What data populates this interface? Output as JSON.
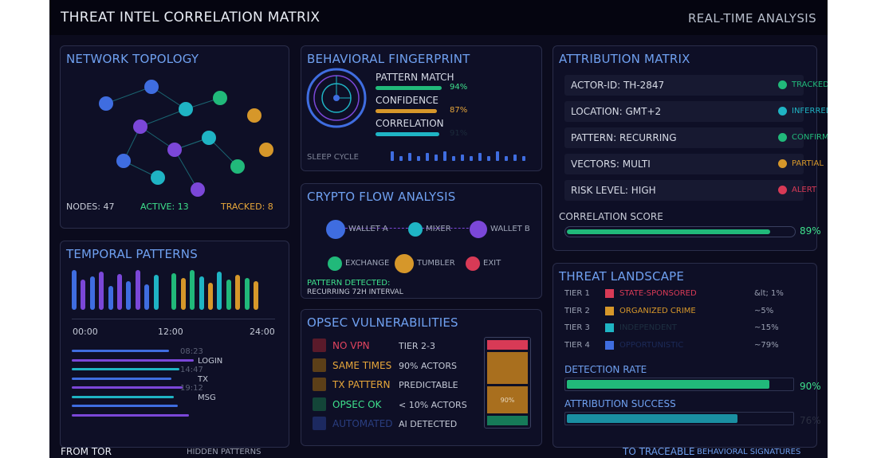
{
  "header": {
    "title": "THREAT INTEL CORRELATION MATRIX",
    "right": "REAL-TIME ANALYSIS"
  },
  "colors": {
    "blue": "#3f6de0",
    "purple": "#7b47d8",
    "cyan": "#1fb4c4",
    "green": "#21b97a",
    "orange": "#d6972a",
    "red": "#d83a56"
  },
  "topology": {
    "title": "NETWORK TOPOLOGY",
    "nodes_label": "NODES: 47",
    "active_label": "ACTIVE: 13",
    "tracked_label": "TRACKED: 8",
    "node_colors": [
      "blue",
      "blue",
      "cyan",
      "green",
      "orange",
      "purple",
      "purple",
      "cyan",
      "blue",
      "cyan",
      "green",
      "orange",
      "purple"
    ]
  },
  "fingerprint": {
    "title": "BEHAVIORAL FINGERPRINT",
    "metrics": [
      {
        "label": "PATTERN MATCH",
        "value": "94%",
        "fill": 0.94,
        "color": "green"
      },
      {
        "label": "CONFIDENCE",
        "value": "87%",
        "fill": 0.87,
        "color": "orange"
      },
      {
        "label": "CORRELATION",
        "value": "91%",
        "fill": 0.91,
        "color": "cyan"
      }
    ],
    "sleep_label": "SLEEP CYCLE"
  },
  "attribution": {
    "title": "ATTRIBUTION MATRIX",
    "rows": [
      {
        "text": "ACTOR-ID: TH-2847",
        "status": "TRACKED",
        "color": "green"
      },
      {
        "text": "LOCATION: GMT+2",
        "status": "INFERRED",
        "color": "cyan"
      },
      {
        "text": "PATTERN: RECURRING",
        "status": "CONFIRMED",
        "color": "green"
      },
      {
        "text": "VECTORS: MULTI",
        "status": "PARTIAL",
        "color": "orange"
      },
      {
        "text": "RISK LEVEL: HIGH",
        "status": "ALERT",
        "color": "red"
      }
    ],
    "score_label": "CORRELATION SCORE",
    "score_value": "89%",
    "score_fill": 0.89
  },
  "temporal": {
    "title": "TEMPORAL PATTERNS",
    "times": [
      "00:00",
      "12:00",
      "24:00"
    ],
    "lines": [
      {
        "time": "08:23",
        "label": "LOGIN"
      },
      {
        "time": "14:47",
        "label": "TX"
      },
      {
        "time": "19:12",
        "label": "MSG"
      }
    ]
  },
  "crypto": {
    "title": "CRYPTO FLOW ANALYSIS",
    "nodes": [
      {
        "label": "WALLET A",
        "color": "blue"
      },
      {
        "label": "MIXER",
        "color": "cyan"
      },
      {
        "label": "WALLET B",
        "color": "purple"
      },
      {
        "label": "EXCHANGE",
        "color": "green"
      },
      {
        "label": "TUMBLER",
        "color": "orange"
      },
      {
        "label": "EXIT",
        "color": "red"
      }
    ],
    "pattern": "PATTERN DETECTED:",
    "interval": "RECURRING 72H INTERVAL"
  },
  "threat": {
    "title": "THREAT LANDSCAPE",
    "tiers": [
      {
        "tier": "TIER 1",
        "name": "STATE-SPONSORED",
        "pct": "&lt; 1%",
        "color": "red"
      },
      {
        "tier": "TIER 2",
        "name": "ORGANIZED CRIME",
        "pct": "~5%",
        "color": "orange"
      },
      {
        "tier": "TIER 3",
        "name": "INDEPENDENT",
        "pct": "~15%",
        "color": "cyan"
      },
      {
        "tier": "TIER 4",
        "name": "OPPORTUNISTIC",
        "pct": "~79%",
        "color": "blue"
      }
    ],
    "detection_label": "DETECTION RATE",
    "detection_value": "90%",
    "detection_fill": 0.9,
    "attrib_label": "ATTRIBUTION SUCCESS",
    "attrib_value": "76%",
    "attrib_fill": 0.76
  },
  "opsec": {
    "title": "OPSEC VULNERABILITIES",
    "items": [
      {
        "name": "NO VPN",
        "desc": "TIER 2-3",
        "color": "red"
      },
      {
        "name": "SAME TIMES",
        "desc": "90% ACTORS",
        "color": "orange"
      },
      {
        "name": "TX PATTERN",
        "desc": "PREDICTABLE",
        "color": "orange"
      },
      {
        "name": "OPSEC OK",
        "desc": "< 10% ACTORS",
        "color": "green"
      },
      {
        "name": "AUTOMATED",
        "desc": "AI DETECTED",
        "color": "blue"
      }
    ],
    "stack_label": "90%"
  },
  "footer": {
    "left": "FROM TOR",
    "hidden": "HIDDEN PATTERNS",
    "traceable": "TO TRACEABLE",
    "signatures": "BEHAVIORAL SIGNATURES"
  }
}
